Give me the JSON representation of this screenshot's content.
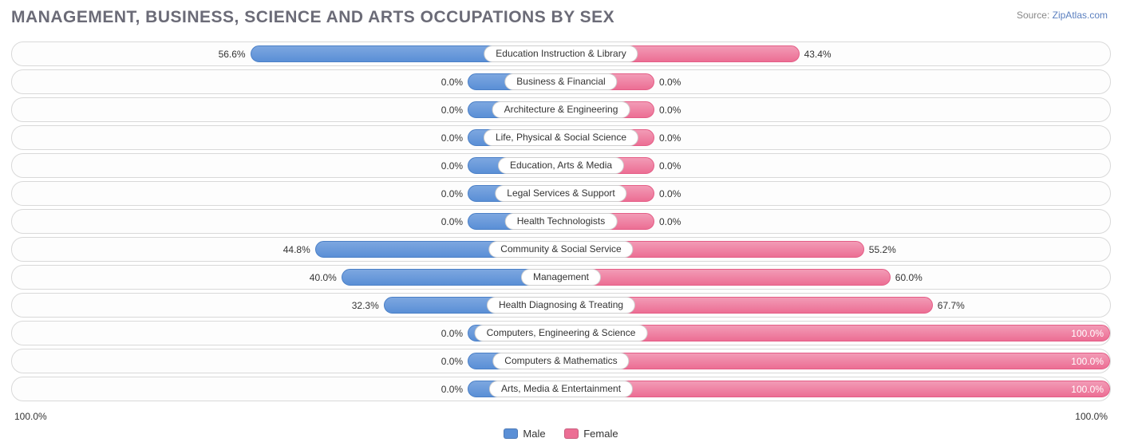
{
  "title": "MANAGEMENT, BUSINESS, SCIENCE AND ARTS OCCUPATIONS BY SEX",
  "source_label": "Source:",
  "source_value": "ZipAtlas.com",
  "axis_left": "100.0%",
  "axis_right": "100.0%",
  "legend": {
    "male": "Male",
    "female": "Female"
  },
  "chart": {
    "type": "diverging-bar",
    "background_color": "#ffffff",
    "row_border_color": "#d9d9d9",
    "male_color": "#5a8fd6",
    "female_color": "#ec6e94",
    "default_bar_pct": 8.5,
    "rows": [
      {
        "label": "Education Instruction & Library",
        "male": 56.6,
        "female": 43.4,
        "male_label": "56.6%",
        "female_label": "43.4%"
      },
      {
        "label": "Business & Financial",
        "male": 0.0,
        "female": 0.0,
        "male_label": "0.0%",
        "female_label": "0.0%"
      },
      {
        "label": "Architecture & Engineering",
        "male": 0.0,
        "female": 0.0,
        "male_label": "0.0%",
        "female_label": "0.0%"
      },
      {
        "label": "Life, Physical & Social Science",
        "male": 0.0,
        "female": 0.0,
        "male_label": "0.0%",
        "female_label": "0.0%"
      },
      {
        "label": "Education, Arts & Media",
        "male": 0.0,
        "female": 0.0,
        "male_label": "0.0%",
        "female_label": "0.0%"
      },
      {
        "label": "Legal Services & Support",
        "male": 0.0,
        "female": 0.0,
        "male_label": "0.0%",
        "female_label": "0.0%"
      },
      {
        "label": "Health Technologists",
        "male": 0.0,
        "female": 0.0,
        "male_label": "0.0%",
        "female_label": "0.0%"
      },
      {
        "label": "Community & Social Service",
        "male": 44.8,
        "female": 55.2,
        "male_label": "44.8%",
        "female_label": "55.2%"
      },
      {
        "label": "Management",
        "male": 40.0,
        "female": 60.0,
        "male_label": "40.0%",
        "female_label": "60.0%"
      },
      {
        "label": "Health Diagnosing & Treating",
        "male": 32.3,
        "female": 67.7,
        "male_label": "32.3%",
        "female_label": "67.7%"
      },
      {
        "label": "Computers, Engineering & Science",
        "male": 0.0,
        "female": 100.0,
        "male_label": "0.0%",
        "female_label": "100.0%"
      },
      {
        "label": "Computers & Mathematics",
        "male": 0.0,
        "female": 100.0,
        "male_label": "0.0%",
        "female_label": "100.0%"
      },
      {
        "label": "Arts, Media & Entertainment",
        "male": 0.0,
        "female": 100.0,
        "male_label": "0.0%",
        "female_label": "100.0%"
      }
    ]
  }
}
